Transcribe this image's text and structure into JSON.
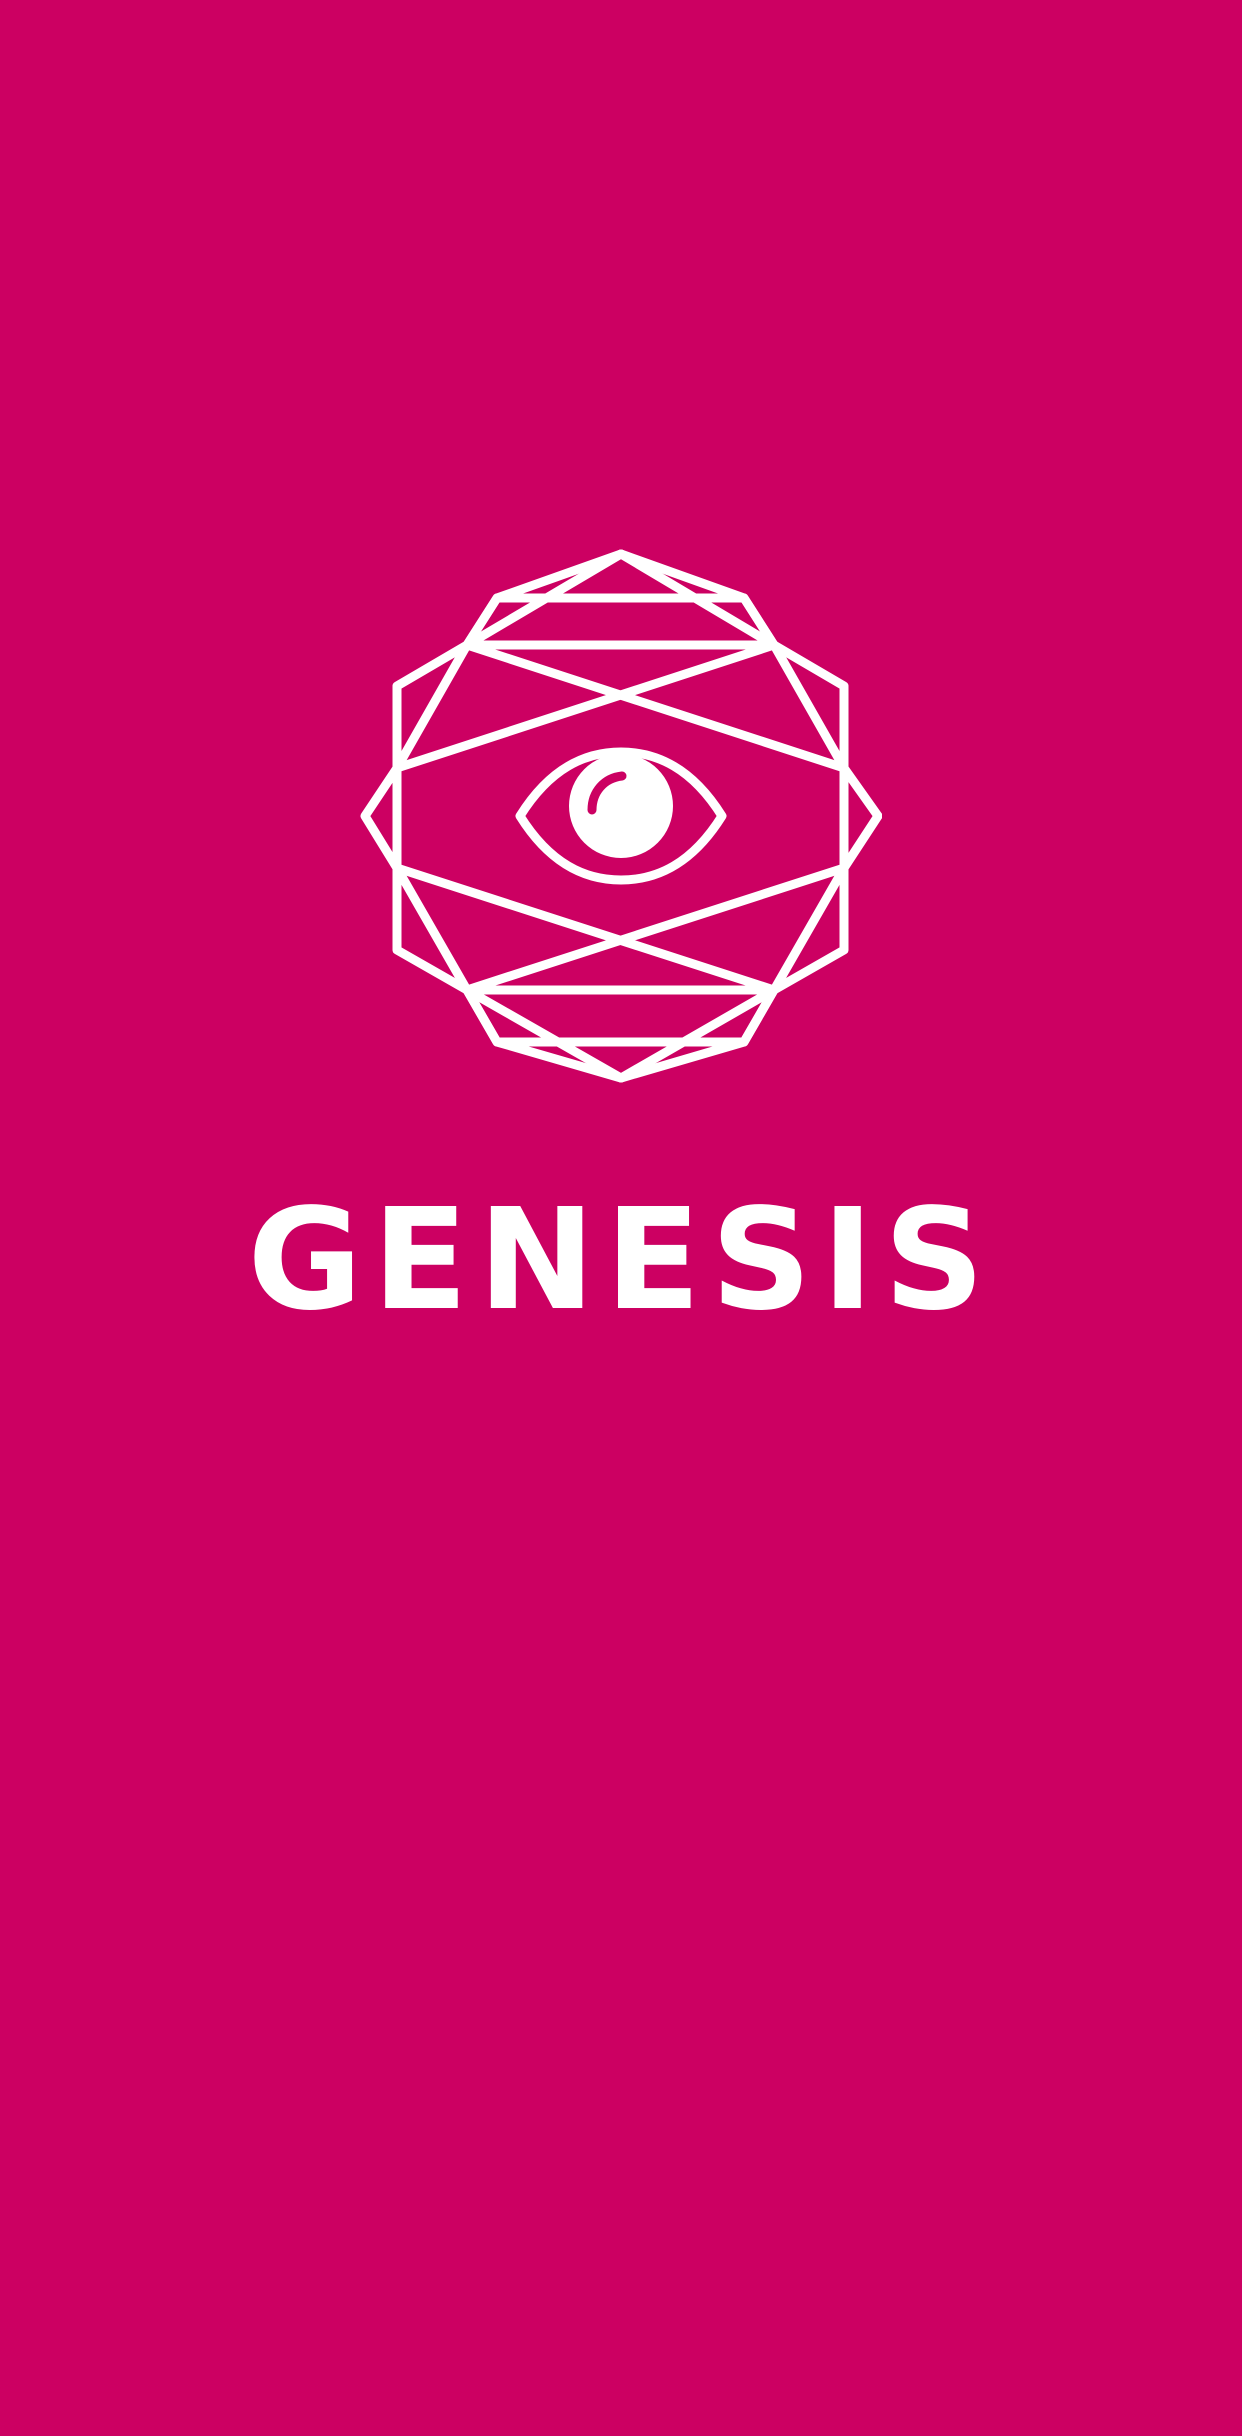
{
  "screen": {
    "type": "splash",
    "background_color": "#CC0062",
    "foreground_color": "#FFFFFF"
  },
  "logo": {
    "icon": "geometric-eye-icon",
    "wordmark": "GENESIS"
  }
}
